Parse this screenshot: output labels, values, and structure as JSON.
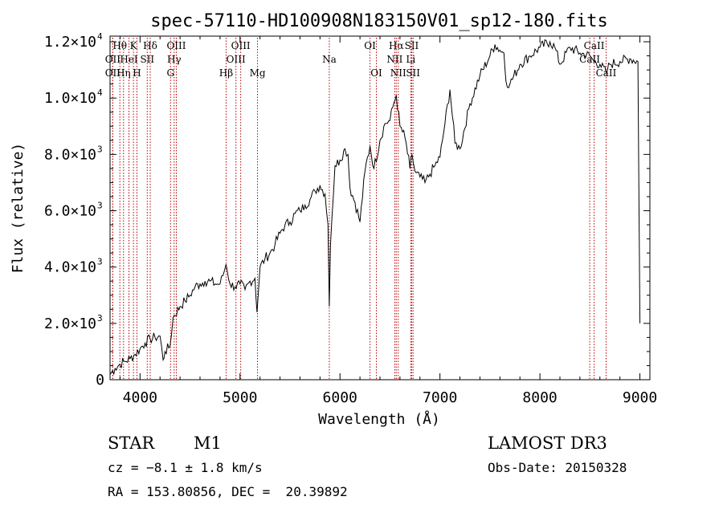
{
  "chart_data": {
    "type": "line",
    "title": "spec-57110-HD100908N183150V01_sp12-180.fits",
    "xlabel": "Wavelength (Å)",
    "ylabel": "Flux (relative)",
    "xlim": [
      3700,
      9100
    ],
    "ylim": [
      0,
      12200
    ],
    "x_ticks": [
      4000,
      5000,
      6000,
      7000,
      8000,
      9000
    ],
    "x_tick_labels": [
      "4000",
      "5000",
      "6000",
      "7000",
      "8000",
      "9000"
    ],
    "y_ticks": [
      {
        "value": 0,
        "mantissa": "0",
        "exponent": ""
      },
      {
        "value": 2000,
        "mantissa": "2.0×10",
        "exponent": "3"
      },
      {
        "value": 4000,
        "mantissa": "4.0×10",
        "exponent": "3"
      },
      {
        "value": 6000,
        "mantissa": "6.0×10",
        "exponent": "3"
      },
      {
        "value": 8000,
        "mantissa": "8.0×10",
        "exponent": "3"
      },
      {
        "value": 10000,
        "mantissa": "1.0×10",
        "exponent": "4"
      },
      {
        "value": 12000,
        "mantissa": "1.2×10",
        "exponent": "4"
      }
    ],
    "series": [
      {
        "name": "spectrum",
        "color": "#000000",
        "x": [
          3700,
          3750,
          3800,
          3850,
          3900,
          3950,
          4000,
          4050,
          4100,
          4150,
          4200,
          4230,
          4250,
          4300,
          4330,
          4400,
          4450,
          4500,
          4550,
          4600,
          4650,
          4700,
          4750,
          4800,
          4830,
          4860,
          4900,
          4950,
          5000,
          5050,
          5100,
          5150,
          5170,
          5200,
          5250,
          5300,
          5350,
          5400,
          5450,
          5500,
          5550,
          5600,
          5650,
          5700,
          5750,
          5800,
          5850,
          5880,
          5893,
          5905,
          5920,
          5950,
          6000,
          6050,
          6080,
          6100,
          6150,
          6200,
          6250,
          6300,
          6340,
          6400,
          6450,
          6500,
          6530,
          6563,
          6600,
          6650,
          6700,
          6720,
          6750,
          6800,
          6850,
          6900,
          6950,
          7000,
          7050,
          7100,
          7150,
          7200,
          7300,
          7400,
          7500,
          7550,
          7600,
          7640,
          7660,
          7700,
          7800,
          7900,
          8000,
          8100,
          8150,
          8200,
          8300,
          8400,
          8500,
          8542,
          8600,
          8662,
          8700,
          8800,
          8900,
          8980,
          9000
        ],
        "y": [
          200,
          400,
          550,
          650,
          750,
          900,
          1100,
          1300,
          1450,
          1500,
          1550,
          700,
          1000,
          1200,
          2200,
          2600,
          2800,
          3000,
          3300,
          3400,
          3500,
          3500,
          3400,
          3400,
          3700,
          4100,
          3400,
          3300,
          3400,
          3200,
          3500,
          3600,
          2400,
          4000,
          4300,
          4500,
          4800,
          5200,
          5500,
          5600,
          5900,
          6000,
          6200,
          6400,
          6700,
          6900,
          6600,
          5500,
          2600,
          4800,
          5800,
          7600,
          7800,
          8200,
          8000,
          6800,
          6300,
          5600,
          7400,
          8300,
          7500,
          8500,
          9100,
          9200,
          9700,
          10100,
          9000,
          8600,
          7500,
          8000,
          7400,
          7200,
          7000,
          7300,
          7600,
          7900,
          9100,
          10300,
          8400,
          8200,
          9800,
          10800,
          11500,
          11900,
          11700,
          11600,
          10600,
          10500,
          11200,
          11500,
          11800,
          12000,
          11800,
          11200,
          11800,
          11600,
          11500,
          11300,
          11200,
          10900,
          11200,
          11300,
          11400,
          11300,
          2000
        ]
      }
    ],
    "lines": [
      {
        "label": "Hθ",
        "wavelength": 3798,
        "row": 0
      },
      {
        "label": "OII",
        "wavelength": 3727,
        "row": 1
      },
      {
        "label": "OII",
        "wavelength": 3727,
        "row": 2
      },
      {
        "label": "Hη",
        "wavelength": 3835,
        "row": 2
      },
      {
        "label": "HeI",
        "wavelength": 3889,
        "row": 1
      },
      {
        "label": "K",
        "wavelength": 3934,
        "row": 0
      },
      {
        "label": "H",
        "wavelength": 3969,
        "row": 2
      },
      {
        "label": "SII",
        "wavelength": 4072,
        "row": 1
      },
      {
        "label": "Hδ",
        "wavelength": 4102,
        "row": 0
      },
      {
        "label": "OIII",
        "wavelength": 4363,
        "row": 0
      },
      {
        "label": "Hγ",
        "wavelength": 4341,
        "row": 1
      },
      {
        "label": "G",
        "wavelength": 4305,
        "row": 2
      },
      {
        "label": "Hβ",
        "wavelength": 4861,
        "row": 2
      },
      {
        "label": "OIII",
        "wavelength": 5007,
        "row": 0
      },
      {
        "label": "OIII",
        "wavelength": 4959,
        "row": 1
      },
      {
        "label": "Mg",
        "wavelength": 5175,
        "row": 2
      },
      {
        "label": "Na",
        "wavelength": 5893,
        "row": 1
      },
      {
        "label": "OI",
        "wavelength": 6300,
        "row": 0
      },
      {
        "label": "OI",
        "wavelength": 6364,
        "row": 2
      },
      {
        "label": "Hα",
        "wavelength": 6563,
        "row": 0
      },
      {
        "label": "NII",
        "wavelength": 6548,
        "row": 1
      },
      {
        "label": "NII",
        "wavelength": 6583,
        "row": 2
      },
      {
        "label": "SII",
        "wavelength": 6717,
        "row": 0
      },
      {
        "label": "Li",
        "wavelength": 6708,
        "row": 1
      },
      {
        "label": "SII",
        "wavelength": 6731,
        "row": 2
      },
      {
        "label": "CaII",
        "wavelength": 8542,
        "row": 0
      },
      {
        "label": "CaII",
        "wavelength": 8498,
        "row": 1
      },
      {
        "label": "CaII",
        "wavelength": 8662,
        "row": 2
      }
    ]
  },
  "info": {
    "object_class": "STAR",
    "subclass": "M1",
    "survey": "LAMOST DR3",
    "cz": "cz = −8.1 ± 1.8 km/s",
    "obs_date": "Obs-Date: 20150328",
    "coords": "RA = 153.80856, DEC =  20.39892"
  },
  "colors": {
    "line_marker": "#b40000",
    "spectrum": "#000000",
    "axis": "#000000"
  }
}
